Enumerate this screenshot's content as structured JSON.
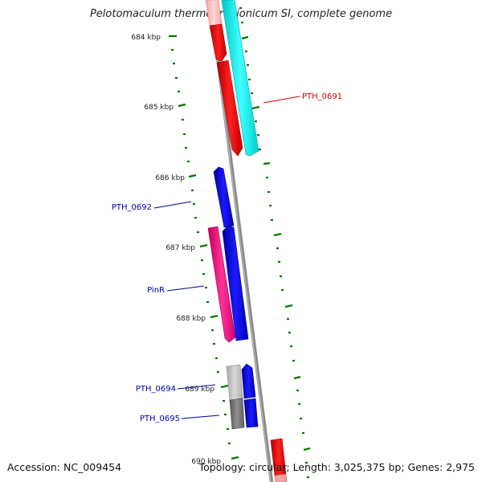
{
  "title": "Pelotomaculum thermopropionicum SI, complete genome",
  "footer": {
    "accession": "Accession: NC_009454",
    "summary": "Topology: circular; Length: 3,025,375 bp; Genes: 2,975"
  },
  "ticks": [
    "684 kbp",
    "685 kbp",
    "686 kbp",
    "687 kbp",
    "688 kbp",
    "689 kbp",
    "690 kbp"
  ],
  "genes": [
    {
      "name": "PTH_0691",
      "color": "#e00000"
    },
    {
      "name": "PTH_0692",
      "color": "#0000cc"
    },
    {
      "name": "PinR",
      "color": "#0000cc"
    },
    {
      "name": "PTH_0694",
      "color": "#0000cc"
    },
    {
      "name": "PTH_0695",
      "color": "#0000cc"
    }
  ],
  "colors": {
    "red": "#ff0000",
    "pink": "#ffbfbf",
    "cyan": "#00ffff",
    "blue": "#0000ff",
    "magenta": "#ff1493",
    "lightgray": "#c0c0c0",
    "darkgray": "#808080",
    "backbone": "#8c8c8c",
    "tick": "#007700"
  }
}
